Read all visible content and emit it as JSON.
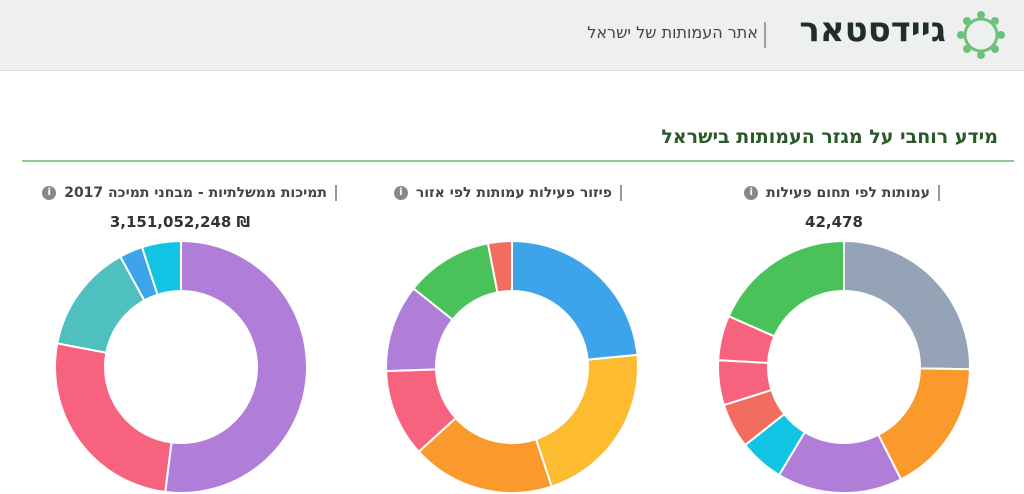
{
  "header": {
    "logo_text": "גיידסטאר",
    "tagline": "אתר העמותות של ישראל"
  },
  "section": {
    "title": "מידע רוחבי על מגזר העמותות בישראל"
  },
  "chart_data": [
    {
      "type": "pie",
      "title": "עמותות לפי תחום פעילות",
      "total": "42,478",
      "values": [
        22,
        15,
        14,
        5,
        5,
        5,
        5,
        16
      ],
      "colors": [
        "#94a3b5",
        "#fb9a2c",
        "#b07ed8",
        "#11c4e4",
        "#f26d5f",
        "#f7637f",
        "#f7637f",
        "#49c25a"
      ]
    },
    {
      "type": "pie",
      "title": "פיזור פעילות עמותות לפי אזור",
      "total": "",
      "values": [
        23,
        21,
        18,
        11,
        11,
        11,
        3
      ],
      "colors": [
        "#3da4ea",
        "#fdbb2f",
        "#fb9a2c",
        "#f7637f",
        "#b07ed8",
        "#49c25a",
        "#f26d5f"
      ]
    },
    {
      "type": "pie",
      "title": "תמיכות ממשלתיות - מבחני תמיכה 2017",
      "total": "3,151,052,248 ₪",
      "values": [
        52,
        26,
        14,
        3,
        5
      ],
      "colors": [
        "#b07ed8",
        "#f7637f",
        "#4fc0c0",
        "#3da4ea",
        "#11c4e4"
      ]
    }
  ]
}
